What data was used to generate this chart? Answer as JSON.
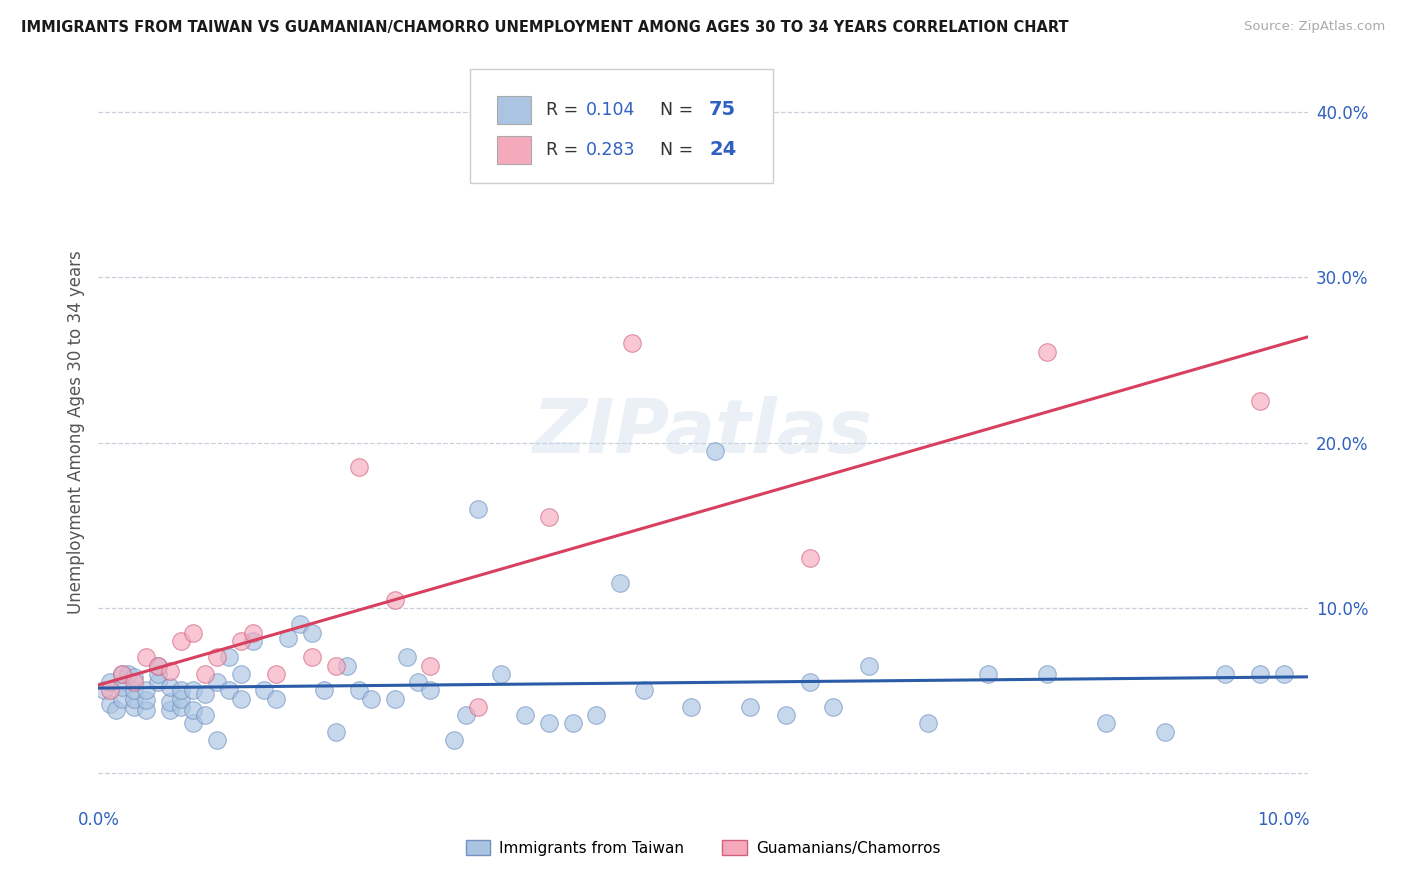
{
  "title": "IMMIGRANTS FROM TAIWAN VS GUAMANIAN/CHAMORRO UNEMPLOYMENT AMONG AGES 30 TO 34 YEARS CORRELATION CHART",
  "source": "Source: ZipAtlas.com",
  "ylabel": "Unemployment Among Ages 30 to 34 years",
  "xlim": [
    0.0,
    0.102
  ],
  "ylim": [
    -0.018,
    0.43
  ],
  "taiwan_R": 0.104,
  "taiwan_N": 75,
  "guam_R": 0.283,
  "guam_N": 24,
  "taiwan_color": "#aac4e2",
  "taiwan_edge_color": "#7090c0",
  "guam_color": "#f5aabc",
  "guam_edge_color": "#d06080",
  "taiwan_line_color": "#2a5ca8",
  "guam_line_color": "#d84060",
  "legend_label_taiwan": "Immigrants from Taiwan",
  "legend_label_guam": "Guamanians/Chamorros",
  "watermark": "ZIPatlas",
  "background_color": "#ffffff",
  "grid_color": "#c8d0dc",
  "label_color": "#3060c0",
  "taiwan_x": [
    0.0005,
    0.001,
    0.001,
    0.0015,
    0.002,
    0.002,
    0.002,
    0.0025,
    0.003,
    0.003,
    0.003,
    0.003,
    0.004,
    0.004,
    0.004,
    0.005,
    0.005,
    0.005,
    0.006,
    0.006,
    0.006,
    0.007,
    0.007,
    0.007,
    0.008,
    0.008,
    0.008,
    0.009,
    0.009,
    0.01,
    0.01,
    0.011,
    0.011,
    0.012,
    0.012,
    0.013,
    0.014,
    0.015,
    0.016,
    0.017,
    0.018,
    0.019,
    0.02,
    0.021,
    0.022,
    0.023,
    0.025,
    0.026,
    0.027,
    0.028,
    0.03,
    0.031,
    0.032,
    0.034,
    0.036,
    0.038,
    0.04,
    0.042,
    0.044,
    0.046,
    0.05,
    0.052,
    0.055,
    0.058,
    0.06,
    0.062,
    0.065,
    0.07,
    0.075,
    0.08,
    0.085,
    0.09,
    0.095,
    0.098,
    0.1
  ],
  "taiwan_y": [
    0.05,
    0.042,
    0.055,
    0.038,
    0.045,
    0.052,
    0.06,
    0.06,
    0.04,
    0.045,
    0.05,
    0.058,
    0.038,
    0.044,
    0.05,
    0.055,
    0.06,
    0.065,
    0.038,
    0.043,
    0.052,
    0.04,
    0.045,
    0.05,
    0.03,
    0.038,
    0.05,
    0.035,
    0.048,
    0.02,
    0.055,
    0.05,
    0.07,
    0.045,
    0.06,
    0.08,
    0.05,
    0.045,
    0.082,
    0.09,
    0.085,
    0.05,
    0.025,
    0.065,
    0.05,
    0.045,
    0.045,
    0.07,
    0.055,
    0.05,
    0.02,
    0.035,
    0.16,
    0.06,
    0.035,
    0.03,
    0.03,
    0.035,
    0.115,
    0.05,
    0.04,
    0.195,
    0.04,
    0.035,
    0.055,
    0.04,
    0.065,
    0.03,
    0.06,
    0.06,
    0.03,
    0.025,
    0.06,
    0.06,
    0.06
  ],
  "guam_x": [
    0.001,
    0.002,
    0.003,
    0.004,
    0.005,
    0.006,
    0.007,
    0.008,
    0.009,
    0.01,
    0.012,
    0.013,
    0.015,
    0.018,
    0.02,
    0.022,
    0.025,
    0.028,
    0.032,
    0.038,
    0.045,
    0.06,
    0.08,
    0.098
  ],
  "guam_y": [
    0.05,
    0.06,
    0.055,
    0.07,
    0.065,
    0.062,
    0.08,
    0.085,
    0.06,
    0.07,
    0.08,
    0.085,
    0.06,
    0.07,
    0.065,
    0.185,
    0.105,
    0.065,
    0.04,
    0.155,
    0.26,
    0.13,
    0.255,
    0.225
  ]
}
